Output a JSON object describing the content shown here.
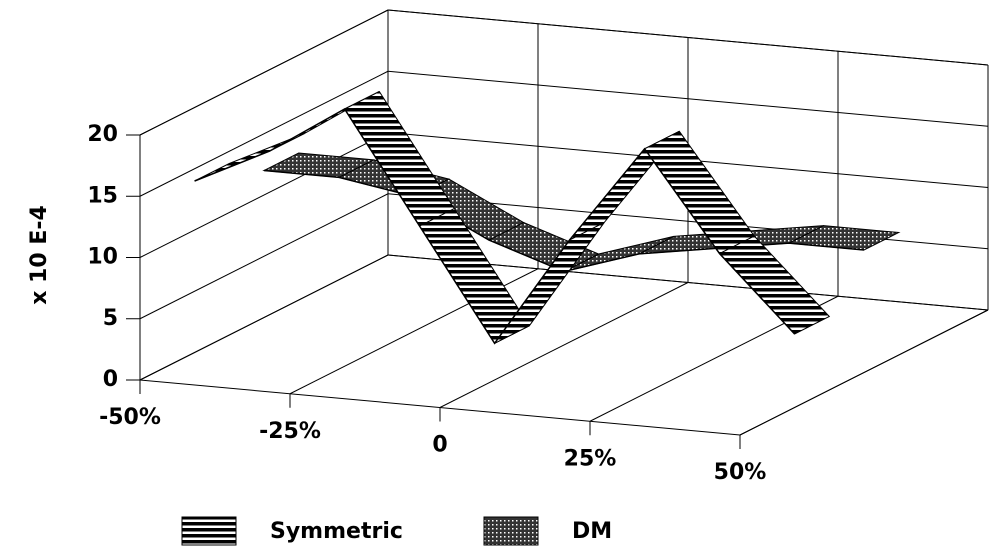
{
  "chart_data": {
    "type": "ribbon3d",
    "y_label": "x 10 E-4",
    "categories": [
      "-50%",
      null,
      "-25%",
      null,
      "0",
      null,
      "25%",
      null,
      "50%"
    ],
    "ylim": [
      0,
      20
    ],
    "yticks": [
      0,
      5,
      10,
      15,
      20
    ],
    "grid": true,
    "legend": "bottom",
    "series": [
      {
        "name": "Symmetric",
        "color": "#000000",
        "pattern": "stripes",
        "values": [
          14,
          17,
          21,
          12,
          3,
          12,
          20,
          12,
          6
        ]
      },
      {
        "name": "DM",
        "color": "#000000",
        "pattern": "crosshatch",
        "values": [
          12,
          12,
          11,
          8,
          6,
          8,
          9,
          10,
          10
        ]
      }
    ]
  }
}
